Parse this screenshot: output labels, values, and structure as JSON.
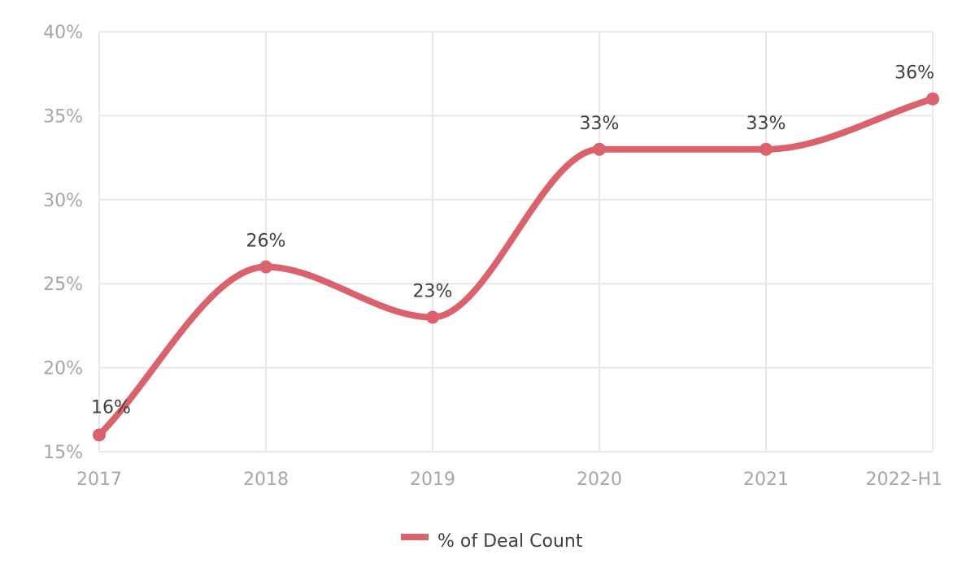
{
  "chart_data": {
    "type": "line",
    "categories": [
      "2017",
      "2018",
      "2019",
      "2020",
      "2021",
      "2022-H1"
    ],
    "series": [
      {
        "name": "% of Deal Count",
        "values": [
          16,
          26,
          23,
          33,
          33,
          36
        ],
        "labels": [
          "16%",
          "26%",
          "23%",
          "33%",
          "33%",
          "36%"
        ],
        "color": "#d9626c"
      }
    ],
    "ylim": [
      15,
      40
    ],
    "y_ticks": [
      15,
      20,
      25,
      30,
      35,
      40
    ],
    "y_tick_labels": [
      "15%",
      "20%",
      "25%",
      "30%",
      "35%",
      "40%"
    ],
    "grid": true,
    "smooth": true,
    "legend_position": "bottom"
  }
}
